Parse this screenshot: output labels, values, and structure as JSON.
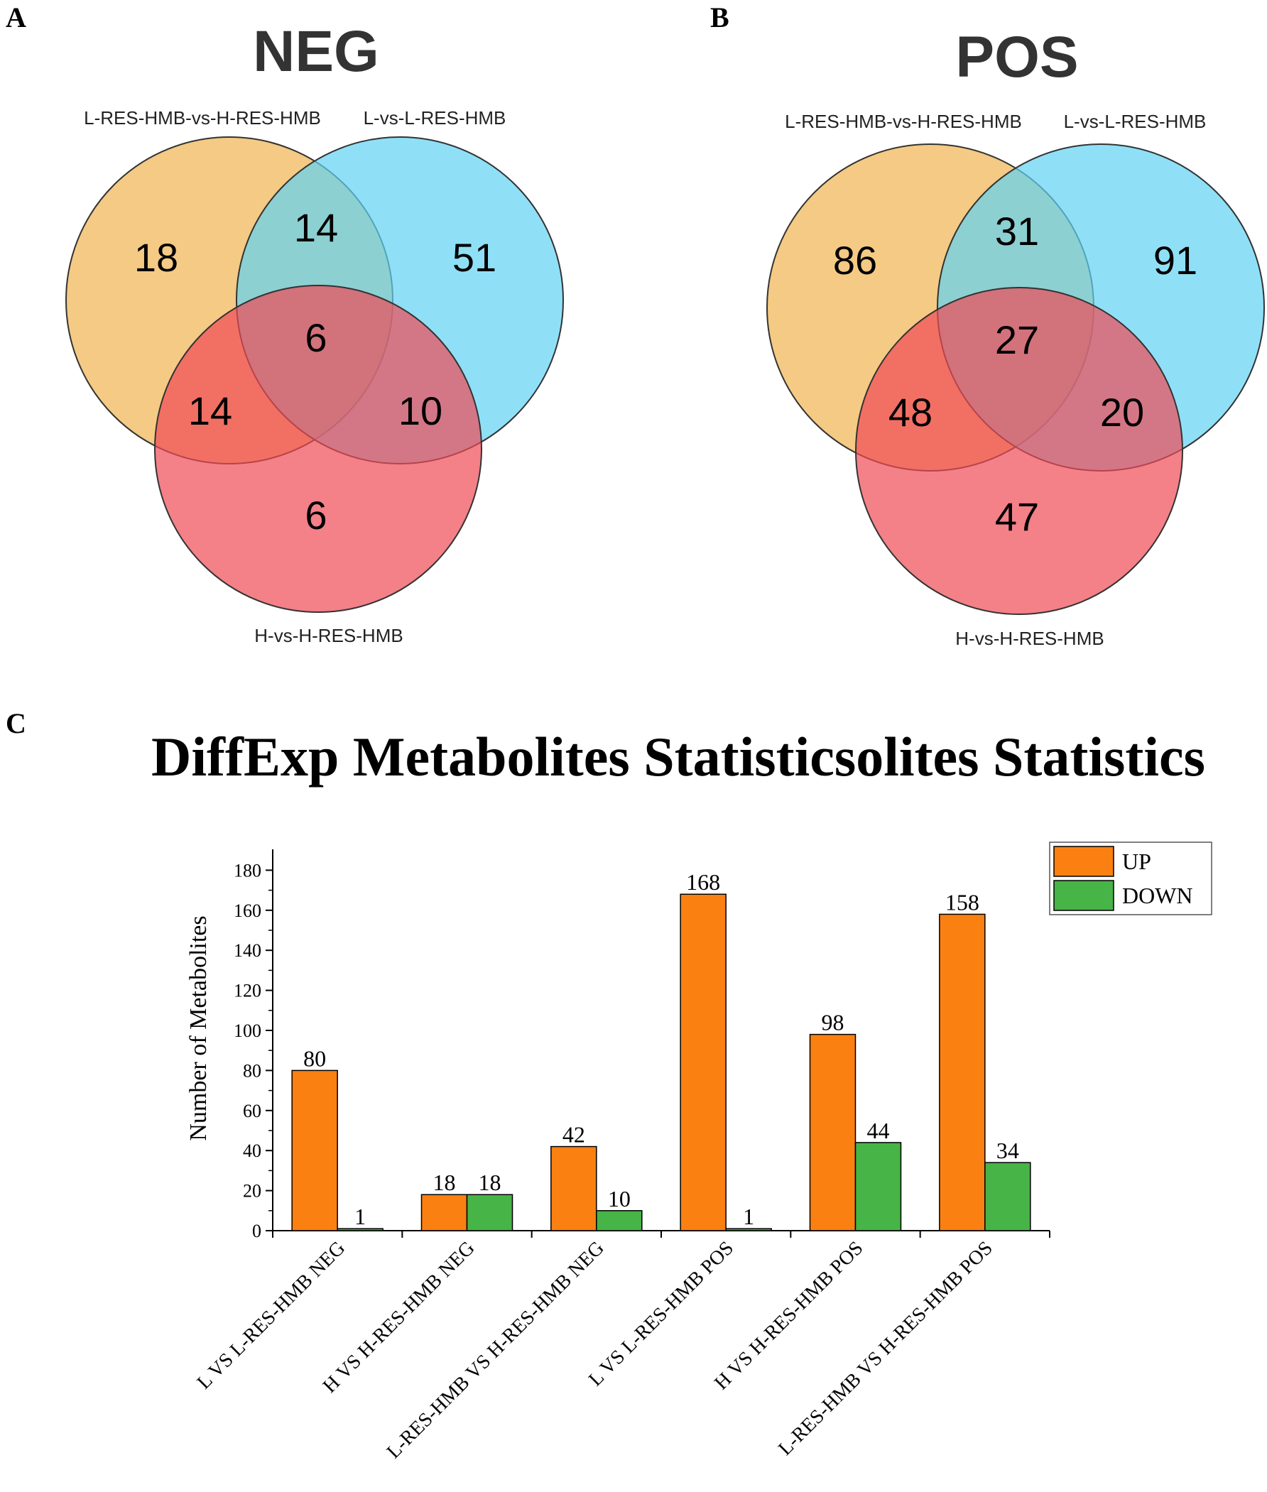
{
  "panels": {
    "a": "A",
    "b": "B",
    "c": "C"
  },
  "venn": {
    "neg": {
      "title": "NEG",
      "labels": {
        "set1": "L-RES-HMB-vs-H-RES-HMB",
        "set2": "L-vs-L-RES-HMB",
        "set3": "H-vs-H-RES-HMB"
      },
      "counts": {
        "only1": "18",
        "only2": "51",
        "only3": "6",
        "s12": "14",
        "s13": "14",
        "s23": "10",
        "s123": "6"
      }
    },
    "pos": {
      "title": "POS",
      "labels": {
        "set1": "L-RES-HMB-vs-H-RES-HMB",
        "set2": "L-vs-L-RES-HMB",
        "set3": "H-vs-H-RES-HMB"
      },
      "counts": {
        "only1": "86",
        "only2": "91",
        "only3": "47",
        "s12": "31",
        "s13": "48",
        "s23": "20",
        "s123": "27"
      }
    },
    "colors": {
      "set1": "#f0b450",
      "set2": "#5fd3f3",
      "set3": "#f04a55"
    }
  },
  "chart_data": {
    "type": "bar",
    "title": "DiffExp Metabolites Statisticsolites Statistics",
    "xlabel": "",
    "ylabel": "Number of Metabolites",
    "ylim": [
      0,
      190
    ],
    "yticks": [
      0,
      20,
      40,
      60,
      80,
      100,
      120,
      140,
      160,
      180
    ],
    "categories": [
      "L VS L-RES-HMB NEG",
      "H VS H-RES-HMB NEG",
      "L-RES-HMB VS H-RES-HMB NEG",
      "L VS L-RES-HMB POS",
      "H VS H-RES-HMB  POS",
      "L-RES-HMB VS H-RES-HMB  POS"
    ],
    "series": [
      {
        "name": "UP",
        "color": "#f98011",
        "values": [
          80,
          18,
          42,
          168,
          98,
          158
        ]
      },
      {
        "name": "DOWN",
        "color": "#46b446",
        "values": [
          1,
          18,
          10,
          1,
          44,
          34
        ]
      }
    ],
    "legend_position": "top-right",
    "grid": false
  }
}
